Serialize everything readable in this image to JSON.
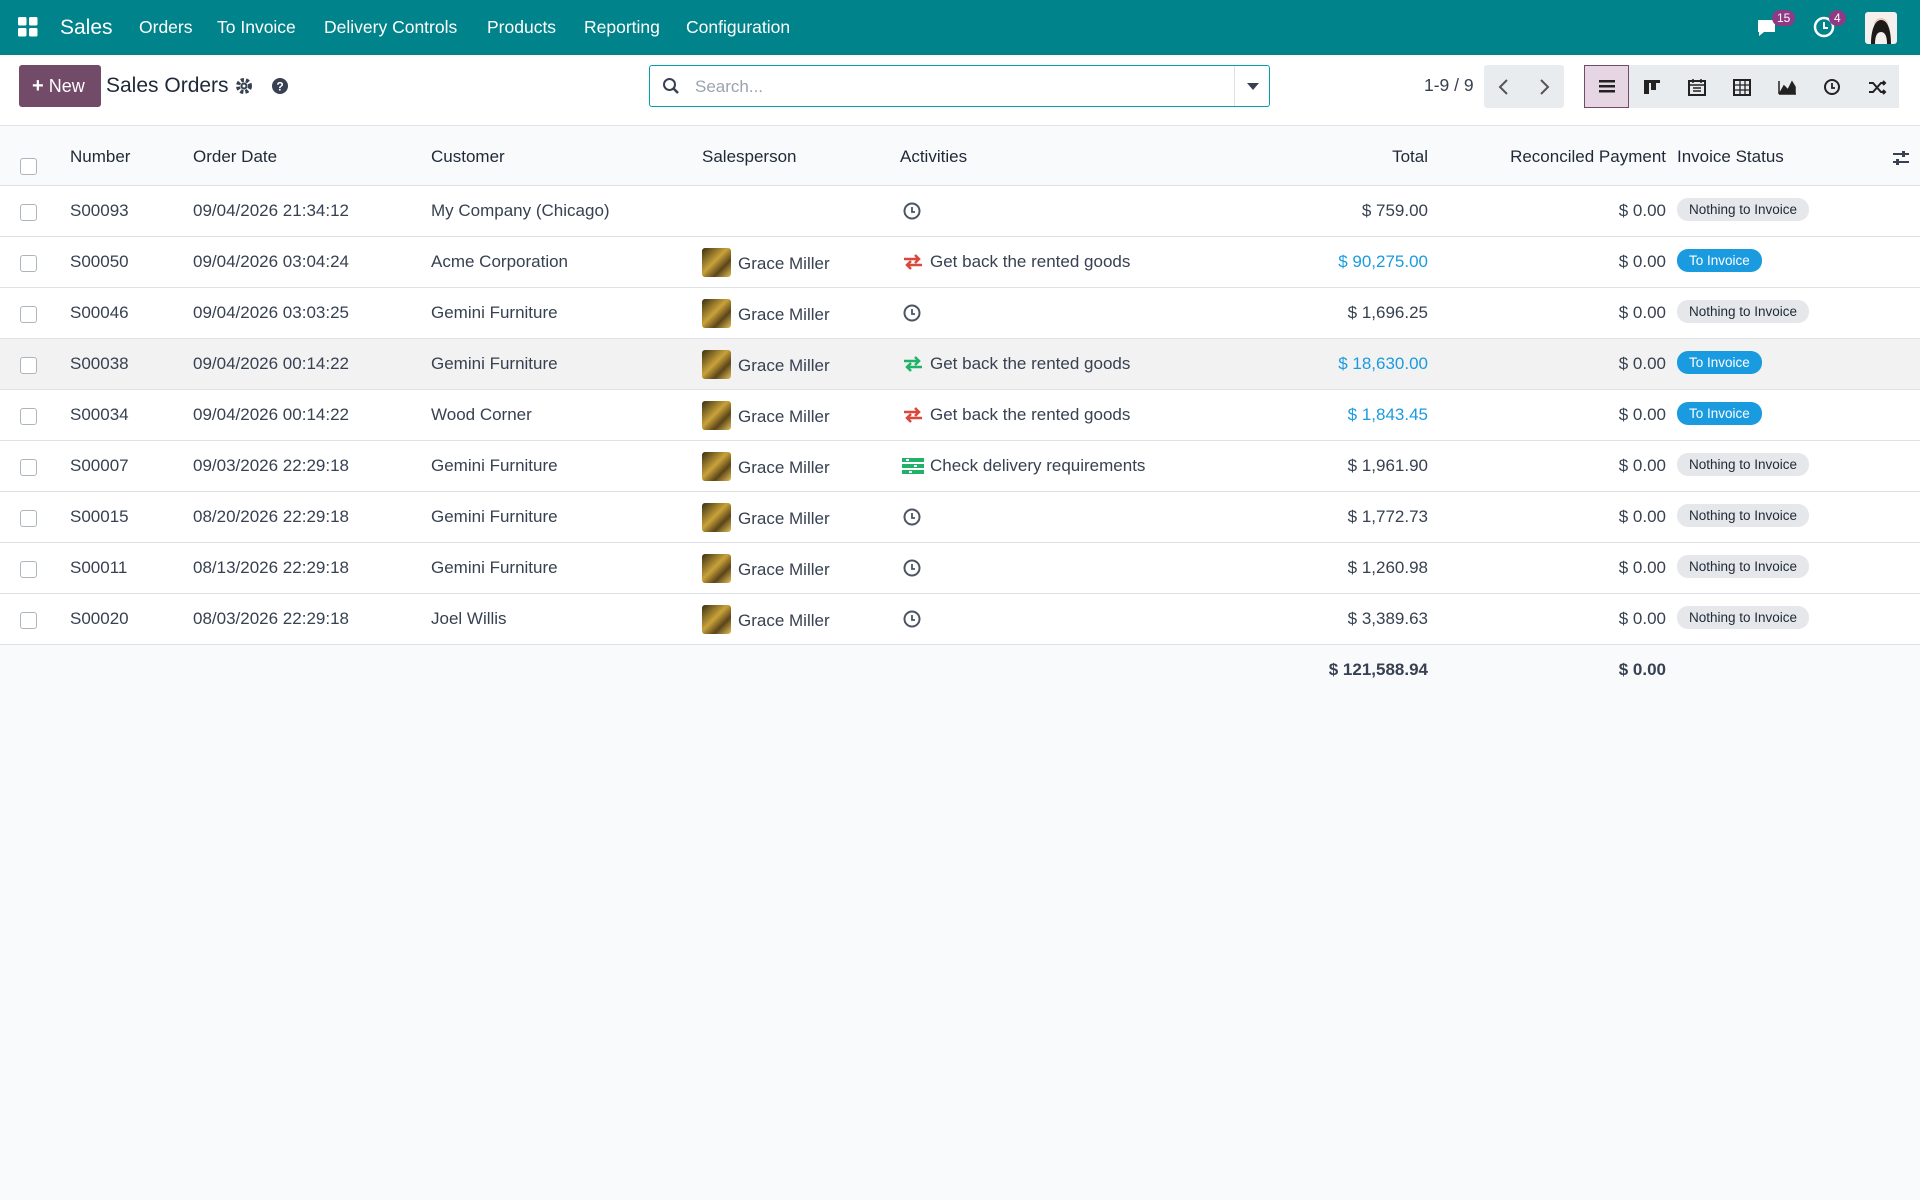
{
  "navbar": {
    "app": "Sales",
    "menus": [
      "Orders",
      "To Invoice",
      "Delivery Controls",
      "Products",
      "Reporting",
      "Configuration"
    ],
    "messages_badge": "15",
    "activities_badge": "4"
  },
  "control_panel": {
    "new_button": "New",
    "title": "Sales Orders",
    "search_placeholder": "Search...",
    "pager": "1-9 / 9"
  },
  "table": {
    "headers": [
      "Number",
      "Order Date",
      "Customer",
      "Salesperson",
      "Activities",
      "Total",
      "Reconciled Payment",
      "Invoice Status"
    ],
    "rows": [
      {
        "number": "S00093",
        "date": "09/04/2026 21:34:12",
        "customer": "My Company (Chicago)",
        "salesperson": null,
        "activity_icon": "clock",
        "activity": null,
        "total": "$ 759.00",
        "reconciled": "$ 0.00",
        "status": "Nothing to Invoice",
        "status_style": "muted"
      },
      {
        "number": "S00050",
        "date": "09/04/2026 03:04:24",
        "customer": "Acme Corporation",
        "salesperson": "Grace Miller",
        "activity_icon": "arrows-red",
        "activity": "Get back the rented goods",
        "total": "$ 90,275.00",
        "reconciled": "$ 0.00",
        "status": "To Invoice",
        "status_style": "info"
      },
      {
        "number": "S00046",
        "date": "09/04/2026 03:03:25",
        "customer": "Gemini Furniture",
        "salesperson": "Grace Miller",
        "activity_icon": "clock",
        "activity": null,
        "total": "$ 1,696.25",
        "reconciled": "$ 0.00",
        "status": "Nothing to Invoice",
        "status_style": "muted"
      },
      {
        "number": "S00038",
        "date": "09/04/2026 00:14:22",
        "customer": "Gemini Furniture",
        "salesperson": "Grace Miller",
        "activity_icon": "arrows-green",
        "activity": "Get back the rented goods",
        "total": "$ 18,630.00",
        "reconciled": "$ 0.00",
        "status": "To Invoice",
        "status_style": "info"
      },
      {
        "number": "S00034",
        "date": "09/04/2026 00:14:22",
        "customer": "Wood Corner",
        "salesperson": "Grace Miller",
        "activity_icon": "arrows-red",
        "activity": "Get back the rented goods",
        "total": "$ 1,843.45",
        "reconciled": "$ 0.00",
        "status": "To Invoice",
        "status_style": "info"
      },
      {
        "number": "S00007",
        "date": "09/03/2026 22:29:18",
        "customer": "Gemini Furniture",
        "salesperson": "Grace Miller",
        "activity_icon": "list-green",
        "activity": "Check delivery requirements",
        "total": "$ 1,961.90",
        "reconciled": "$ 0.00",
        "status": "Nothing to Invoice",
        "status_style": "muted"
      },
      {
        "number": "S00015",
        "date": "08/20/2026 22:29:18",
        "customer": "Gemini Furniture",
        "salesperson": "Grace Miller",
        "activity_icon": "clock",
        "activity": null,
        "total": "$ 1,772.73",
        "reconciled": "$ 0.00",
        "status": "Nothing to Invoice",
        "status_style": "muted"
      },
      {
        "number": "S00011",
        "date": "08/13/2026 22:29:18",
        "customer": "Gemini Furniture",
        "salesperson": "Grace Miller",
        "activity_icon": "clock",
        "activity": null,
        "total": "$ 1,260.98",
        "reconciled": "$ 0.00",
        "status": "Nothing to Invoice",
        "status_style": "muted"
      },
      {
        "number": "S00020",
        "date": "08/03/2026 22:29:18",
        "customer": "Joel Willis",
        "salesperson": "Grace Miller",
        "activity_icon": "clock",
        "activity": null,
        "total": "$ 3,389.63",
        "reconciled": "$ 0.00",
        "status": "Nothing to Invoice",
        "status_style": "muted"
      }
    ],
    "footer": {
      "total": "$ 121,588.94",
      "reconciled": "$ 0.00"
    }
  }
}
